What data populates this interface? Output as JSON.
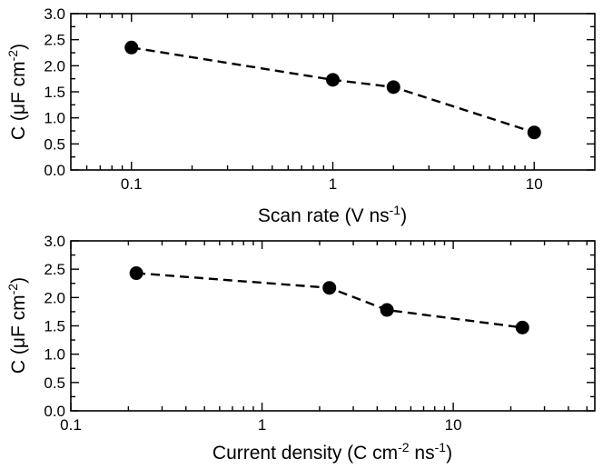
{
  "chart_data": [
    {
      "type": "line",
      "x_scale": "log",
      "x": [
        0.1,
        1,
        2,
        10
      ],
      "series": [
        {
          "values": [
            2.35,
            1.73,
            1.59,
            0.72
          ]
        }
      ],
      "xlabel": {
        "main": "Scan rate (V ns",
        "sup1": "-1",
        "tail": ")"
      },
      "ylabel": {
        "main": "C (μF cm",
        "sup1": "-2",
        "tail": ")"
      },
      "xlim": [
        0.05,
        20
      ],
      "ylim": [
        0,
        3
      ],
      "xticks": [
        0.1,
        1,
        10
      ],
      "xtick_labels": [
        "0.1",
        "1",
        "10"
      ],
      "yticks": [
        0.0,
        0.5,
        1.0,
        1.5,
        2.0,
        2.5,
        3.0
      ],
      "ytick_labels": [
        "0.0",
        "0.5",
        "1.0",
        "1.5",
        "2.0",
        "2.5",
        "3.0"
      ],
      "grid": false,
      "line_style": "dashed",
      "marker": "filled-circle",
      "color": "#000000"
    },
    {
      "type": "line",
      "x_scale": "log",
      "x": [
        0.22,
        2.25,
        4.5,
        23
      ],
      "series": [
        {
          "values": [
            2.43,
            2.17,
            1.78,
            1.47
          ]
        }
      ],
      "xlabel": {
        "main": "Current density (C cm",
        "sup1": "-2",
        "mid": " ns",
        "sup2": "-1",
        "tail": ")"
      },
      "ylabel": {
        "main": "C (μF cm",
        "sup1": "-2",
        "tail": ")"
      },
      "xlim": [
        0.1,
        55
      ],
      "ylim": [
        0,
        3
      ],
      "xticks": [
        0.1,
        1,
        10
      ],
      "xtick_labels": [
        "0.1",
        "1",
        "10"
      ],
      "yticks": [
        0.0,
        0.5,
        1.0,
        1.5,
        2.0,
        2.5,
        3.0
      ],
      "ytick_labels": [
        "0.0",
        "0.5",
        "1.0",
        "1.5",
        "2.0",
        "2.5",
        "3.0"
      ],
      "grid": false,
      "line_style": "dashed",
      "marker": "filled-circle",
      "color": "#000000"
    }
  ]
}
